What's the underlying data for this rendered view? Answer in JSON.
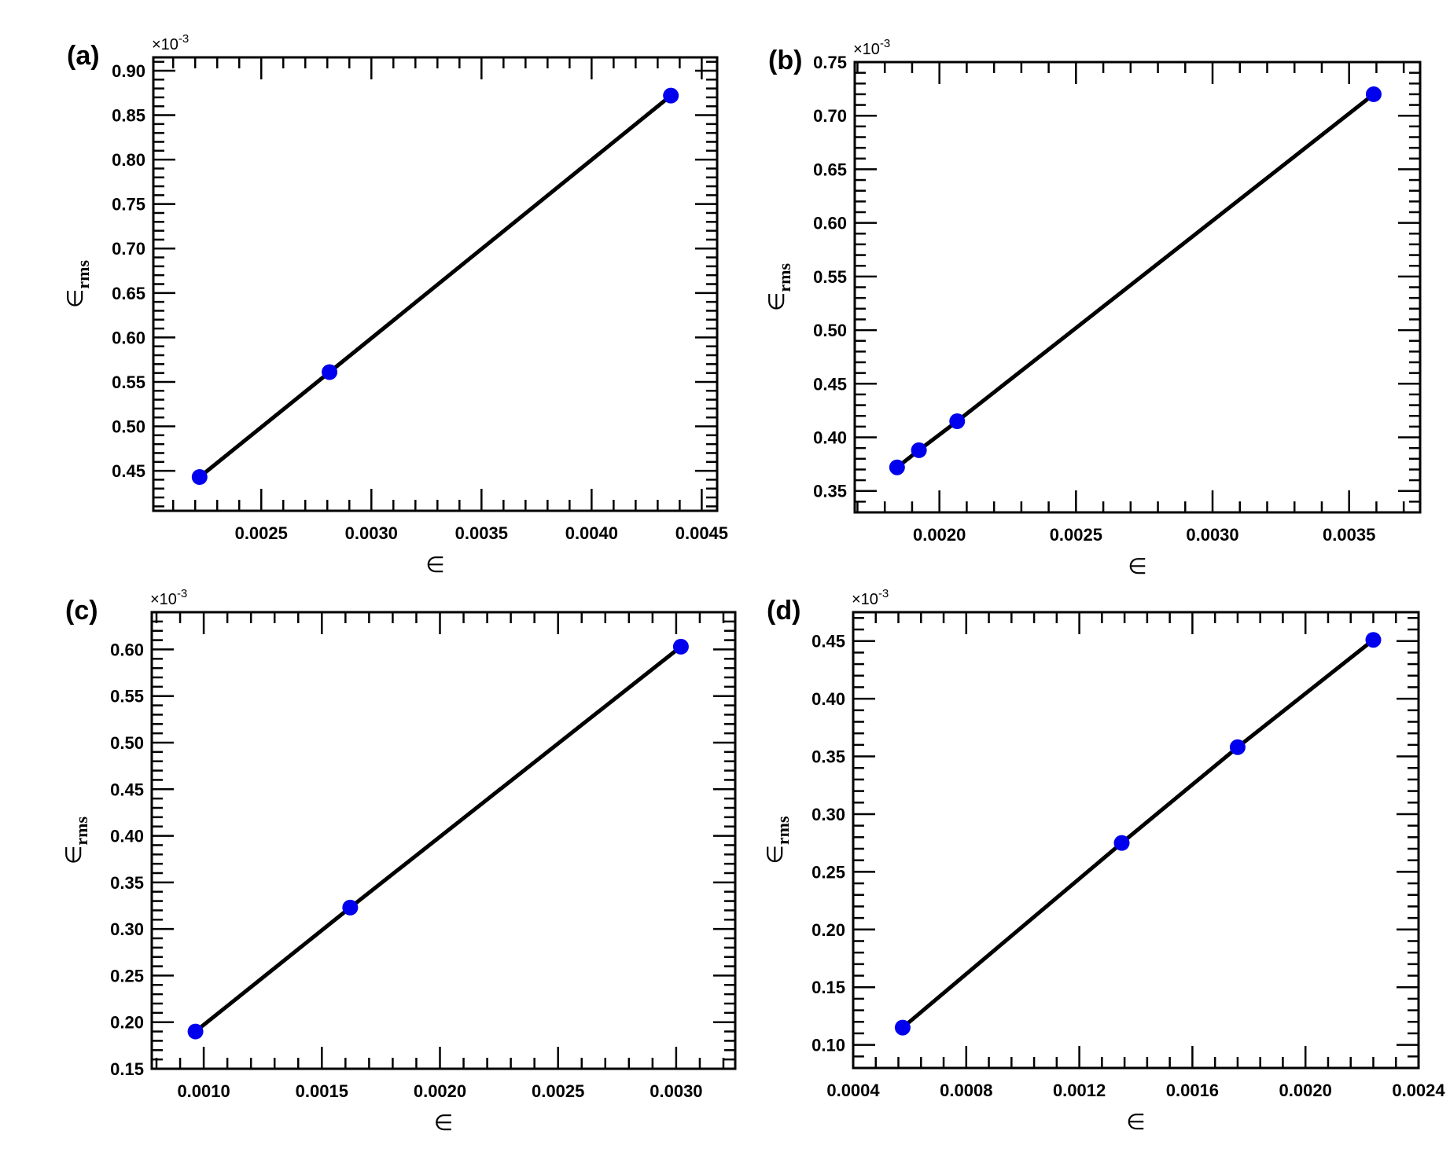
{
  "chart_data": [
    {
      "type": "scatter",
      "panel_label": "(a)",
      "xlabel": "∈",
      "ylabel": "∈",
      "ylabel_sub": "rms",
      "y_multiplier_label": "×10",
      "y_multiplier_exp": "-3",
      "xlim": [
        0.00201,
        0.00457
      ],
      "ylim": [
        0.405,
        0.915
      ],
      "xticks": [
        0.0025,
        0.003,
        0.0035,
        0.004,
        0.0045
      ],
      "xtick_labels": [
        "0.0025",
        "0.0030",
        "0.0035",
        "0.0040",
        "0.0045"
      ],
      "yticks": [
        0.45,
        0.5,
        0.55,
        0.6,
        0.65,
        0.7,
        0.75,
        0.8,
        0.85,
        0.9
      ],
      "ytick_labels": [
        "0.45",
        "0.50",
        "0.55",
        "0.60",
        "0.65",
        "0.70",
        "0.75",
        "0.80",
        "0.85",
        "0.90"
      ],
      "marker_color": "#0000ee",
      "line_color": "#000000",
      "grid": false,
      "points": [
        {
          "x": 0.00222,
          "y": 0.443
        },
        {
          "x": 0.00281,
          "y": 0.561
        },
        {
          "x": 0.00436,
          "y": 0.872
        }
      ]
    },
    {
      "type": "scatter",
      "panel_label": "(b)",
      "xlabel": "∈",
      "ylabel": "∈",
      "ylabel_sub": "rms",
      "y_multiplier_label": "×10",
      "y_multiplier_exp": "-3",
      "xlim": [
        0.00169,
        0.00376
      ],
      "ylim": [
        0.33,
        0.75
      ],
      "xticks": [
        0.002,
        0.0025,
        0.003,
        0.0035
      ],
      "xtick_labels": [
        "0.0020",
        "0.0025",
        "0.0030",
        "0.0035"
      ],
      "yticks": [
        0.35,
        0.4,
        0.45,
        0.5,
        0.55,
        0.6,
        0.65,
        0.7,
        0.75
      ],
      "ytick_labels": [
        "0.35",
        "0.40",
        "0.45",
        "0.50",
        "0.55",
        "0.60",
        "0.65",
        "0.70",
        "0.75"
      ],
      "marker_color": "#0000ee",
      "line_color": "#000000",
      "grid": false,
      "points": [
        {
          "x": 0.001845,
          "y": 0.372
        },
        {
          "x": 0.001925,
          "y": 0.388
        },
        {
          "x": 0.002065,
          "y": 0.415
        },
        {
          "x": 0.00359,
          "y": 0.72
        }
      ]
    },
    {
      "type": "scatter",
      "panel_label": "(c)",
      "xlabel": "∈",
      "ylabel": "∈",
      "ylabel_sub": "rms",
      "y_multiplier_label": "×10",
      "y_multiplier_exp": "-3",
      "xlim": [
        0.00078,
        0.00325
      ],
      "ylim": [
        0.15,
        0.64
      ],
      "xticks": [
        0.001,
        0.0015,
        0.002,
        0.0025,
        0.003
      ],
      "xtick_labels": [
        "0.0010",
        "0.0015",
        "0.0020",
        "0.0025",
        "0.0030"
      ],
      "yticks": [
        0.15,
        0.2,
        0.25,
        0.3,
        0.35,
        0.4,
        0.45,
        0.5,
        0.55,
        0.6
      ],
      "ytick_labels": [
        "0.15",
        "0.20",
        "0.25",
        "0.30",
        "0.35",
        "0.40",
        "0.45",
        "0.50",
        "0.55",
        "0.60"
      ],
      "marker_color": "#0000ee",
      "line_color": "#000000",
      "grid": false,
      "points": [
        {
          "x": 0.000965,
          "y": 0.19
        },
        {
          "x": 0.00162,
          "y": 0.323
        },
        {
          "x": 0.00302,
          "y": 0.603
        }
      ]
    },
    {
      "type": "scatter",
      "panel_label": "(d)",
      "xlabel": "∈",
      "ylabel": "∈",
      "ylabel_sub": "rms",
      "y_multiplier_label": "×10",
      "y_multiplier_exp": "-3",
      "xlim": [
        0.0004,
        0.0024
      ],
      "ylim": [
        0.08,
        0.475
      ],
      "xticks": [
        0.0004,
        0.0008,
        0.0012,
        0.0016,
        0.002,
        0.0024
      ],
      "xtick_labels": [
        "0.0004",
        "0.0008",
        "0.0012",
        "0.0016",
        "0.0020",
        "0.0024"
      ],
      "yticks": [
        0.1,
        0.15,
        0.2,
        0.25,
        0.3,
        0.35,
        0.4,
        0.45
      ],
      "ytick_labels": [
        "0.10",
        "0.15",
        "0.20",
        "0.25",
        "0.30",
        "0.35",
        "0.40",
        "0.45"
      ],
      "marker_color": "#0000ee",
      "line_color": "#000000",
      "grid": false,
      "points": [
        {
          "x": 0.000575,
          "y": 0.115
        },
        {
          "x": 0.00135,
          "y": 0.275
        },
        {
          "x": 0.00176,
          "y": 0.358
        },
        {
          "x": 0.00224,
          "y": 0.451
        }
      ]
    }
  ]
}
